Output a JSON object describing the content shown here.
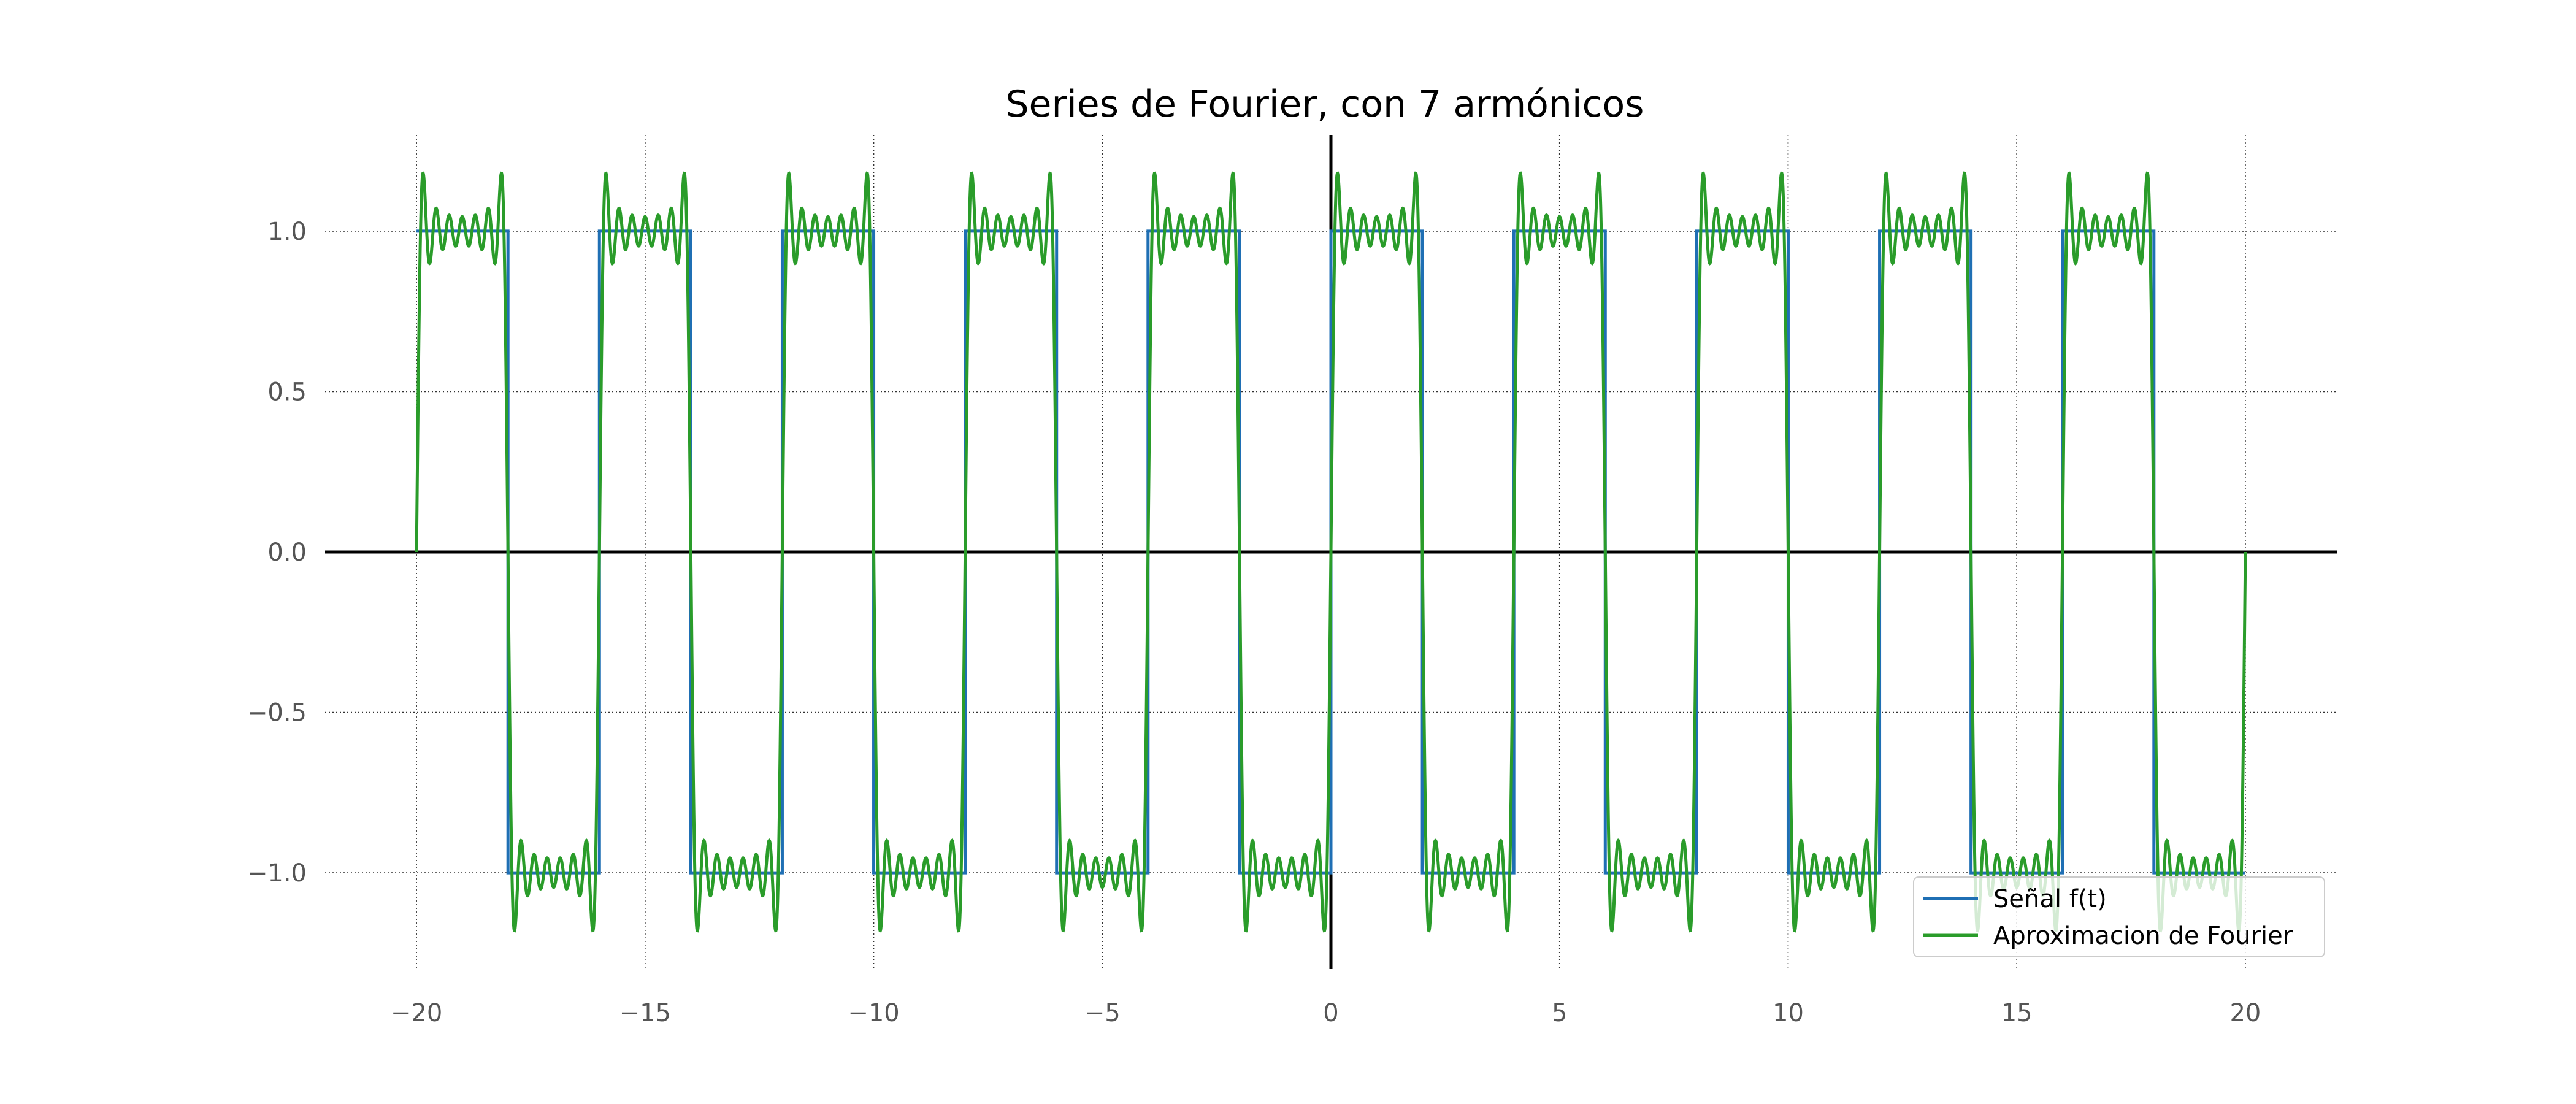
{
  "chart_data": {
    "type": "line",
    "title": "Series de Fourier, con 7 armónicos",
    "xlabel": "",
    "ylabel": "",
    "xlim": [
      -22,
      22
    ],
    "ylim": [
      -1.3,
      1.3
    ],
    "x_ticks": [
      -20,
      -15,
      -10,
      -5,
      0,
      5,
      10,
      15,
      20
    ],
    "x_tick_labels": [
      "−20",
      "−15",
      "−10",
      "−5",
      "0",
      "5",
      "10",
      "15",
      "20"
    ],
    "y_ticks": [
      1.0,
      0.5,
      0.0,
      -0.5,
      -1.0
    ],
    "y_tick_labels": [
      "1.0",
      "0.5",
      "0.0",
      "−0.5",
      "−1.0"
    ],
    "grid": true,
    "legend_position": "lower-right",
    "series": [
      {
        "name": "Señal f(t)",
        "kind": "square-wave",
        "period": 4,
        "amplitude": 1,
        "x_range": [
          -20,
          20
        ],
        "color": "#1f6fb4"
      },
      {
        "name": "Aproximacion de Fourier",
        "kind": "fourier-square-approximation",
        "harmonics": 7,
        "odd_harmonics": [
          1,
          3,
          5,
          7,
          9,
          11,
          13
        ],
        "period": 4,
        "x_range": [
          -20,
          20
        ],
        "color": "#2a9c2a"
      }
    ]
  }
}
